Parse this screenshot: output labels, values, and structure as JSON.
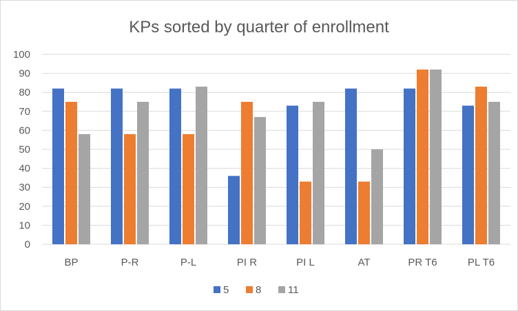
{
  "chart_data": {
    "type": "bar",
    "title": "KPs sorted by quarter of enrollment",
    "xlabel": "",
    "ylabel": "",
    "categories": [
      "BP",
      "P-R",
      "P-L",
      "PI R",
      "PI L",
      "AT",
      "PR T6",
      "PL T6"
    ],
    "series": [
      {
        "name": "5",
        "color": "#4472C4",
        "values": [
          82,
          82,
          82,
          36,
          73,
          82,
          82,
          73
        ]
      },
      {
        "name": "8",
        "color": "#ED7D31",
        "values": [
          75,
          58,
          58,
          75,
          33,
          33,
          92,
          83
        ]
      },
      {
        "name": "11",
        "color": "#A5A5A5",
        "values": [
          58,
          75,
          83,
          67,
          75,
          50,
          92,
          75
        ]
      }
    ],
    "ylim": [
      0,
      100
    ],
    "yticks": [
      0,
      10,
      20,
      30,
      40,
      50,
      60,
      70,
      80,
      90,
      100
    ],
    "grid": true,
    "legend_position": "bottom"
  }
}
